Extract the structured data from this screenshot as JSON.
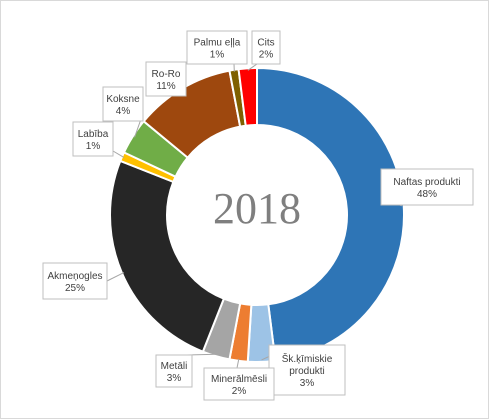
{
  "chart_data": {
    "type": "pie",
    "variant": "doughnut",
    "title": "",
    "center_label": "2018",
    "unit": "%",
    "slices": [
      {
        "label": "Naftas produkti",
        "value": 48,
        "value_label": "48%",
        "color": "#2e75b6"
      },
      {
        "label": "Šk.ķīmiskie produkti",
        "value": 3,
        "value_label": "3%",
        "color": "#9dc3e6"
      },
      {
        "label": "Minerālmēsli",
        "value": 2,
        "value_label": "2%",
        "color": "#ed7d31"
      },
      {
        "label": "Metāli",
        "value": 3,
        "value_label": "3%",
        "color": "#a5a5a5"
      },
      {
        "label": "Akmeņogles",
        "value": 25,
        "value_label": "25%",
        "color": "#262626"
      },
      {
        "label": "Labība",
        "value": 1,
        "value_label": "1%",
        "color": "#ffc000"
      },
      {
        "label": "Koksne",
        "value": 4,
        "value_label": "4%",
        "color": "#70ad47"
      },
      {
        "label": "Ro-Ro",
        "value": 11,
        "value_label": "11%",
        "color": "#9e480e"
      },
      {
        "label": "Palmu eļļa",
        "value": 1,
        "value_label": "1%",
        "color": "#7f6000"
      },
      {
        "label": "Cits",
        "value": 2,
        "value_label": "2%",
        "color": "#ff0000"
      }
    ],
    "legend": "none"
  }
}
